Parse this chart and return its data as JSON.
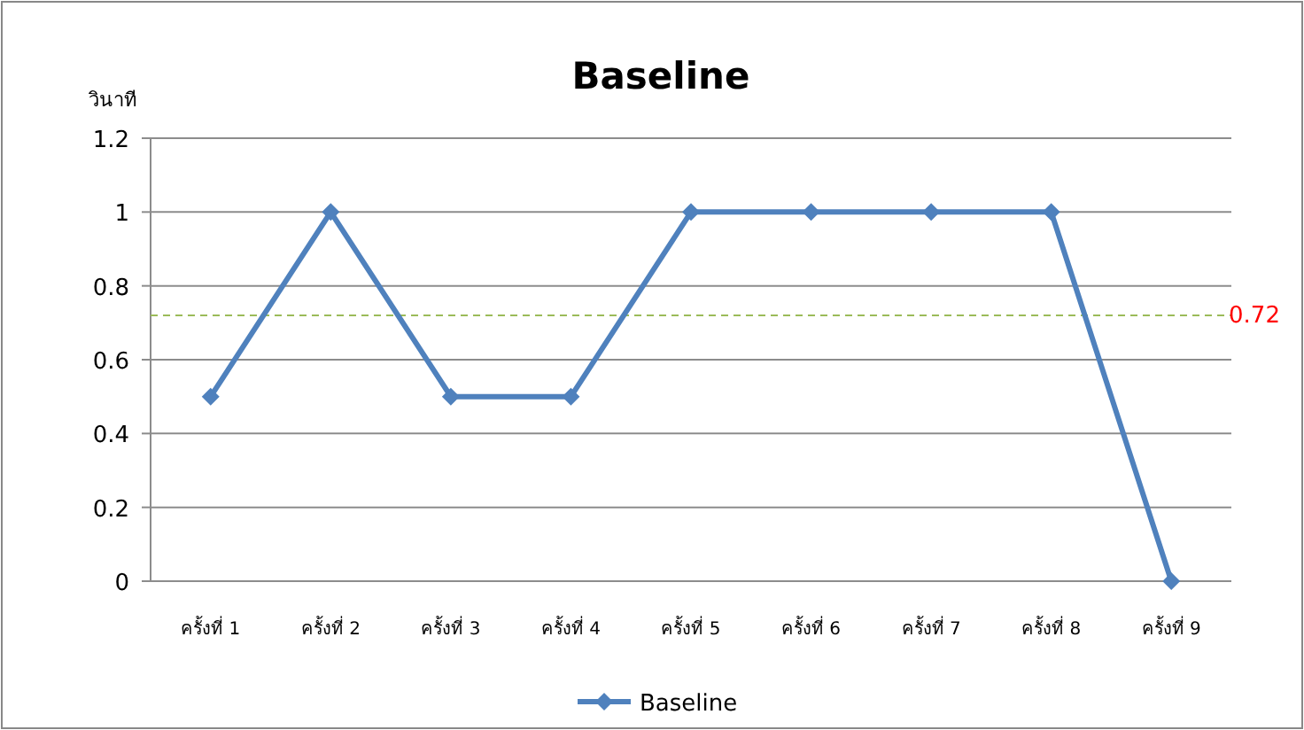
{
  "chart_data": {
    "type": "line",
    "title": "Baseline",
    "ylabel": "วินาที",
    "categories": [
      "ครั้งที่ 1",
      "ครั้งที่ 2",
      "ครั้งที่ 3",
      "ครั้งที่ 4",
      "ครั้งที่ 5",
      "ครั้งที่ 6",
      "ครั้งที่ 7",
      "ครั้งที่ 8",
      "ครั้งที่ 9"
    ],
    "series": [
      {
        "name": "Baseline",
        "color": "#4f81bd",
        "values": [
          0.5,
          1,
          0.5,
          0.5,
          1,
          1,
          1,
          1,
          0
        ]
      }
    ],
    "ylim": [
      0,
      1.2
    ],
    "yticks": [
      0,
      0.2,
      0.4,
      0.6,
      0.8,
      1,
      1.2
    ],
    "grid": "y",
    "legend": "bottom",
    "marker": "diamond",
    "line_style": "solid",
    "ref_lines": [
      {
        "axis": "y",
        "value": 0.72,
        "label": "0.72",
        "color": "#9bbb59",
        "line_style": "dashed"
      }
    ]
  }
}
